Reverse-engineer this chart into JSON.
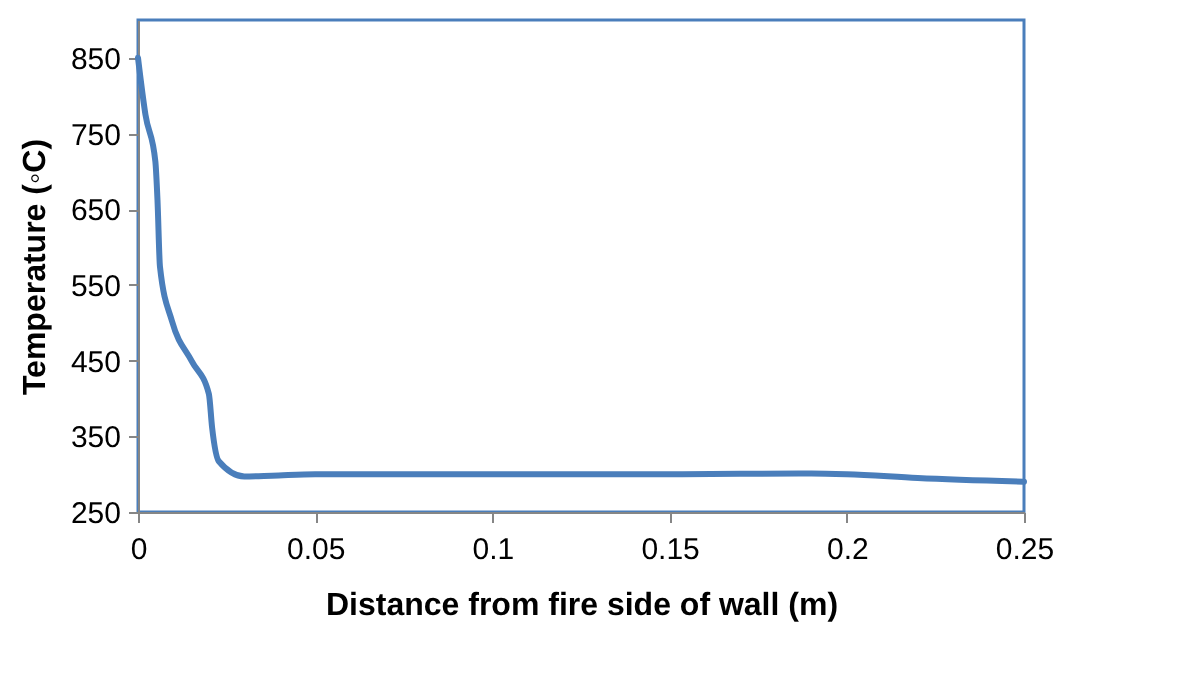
{
  "chart_data": {
    "type": "line",
    "xlabel": "Distance from fire side of wall (m)",
    "ylabel": "Temperature (◦C)",
    "x": [
      0,
      0.0021,
      0.0049,
      0.0055,
      0.0062,
      0.0096,
      0.0152,
      0.02,
      0.0209,
      0.0228,
      0.03,
      0.0378,
      0.05,
      0.1,
      0.15,
      0.19,
      0.2,
      0.22,
      0.25
    ],
    "series": [
      {
        "color": "#4a7ebb",
        "values": [
          850,
          775,
          713,
          662,
          574,
          502,
          449,
          406,
          362,
          317,
          297,
          298,
          300,
          300,
          300,
          301,
          300,
          295,
          290
        ]
      }
    ],
    "xlim": [
      0,
      0.25
    ],
    "xticks": [
      0,
      0.05,
      0.1,
      0.15,
      0.2,
      0.25
    ],
    "ylim": [
      250,
      900
    ],
    "yticks": [
      250,
      350,
      450,
      550,
      650,
      750,
      850
    ],
    "grid": false,
    "legend": false,
    "marker": "none",
    "line_style": "solid"
  }
}
